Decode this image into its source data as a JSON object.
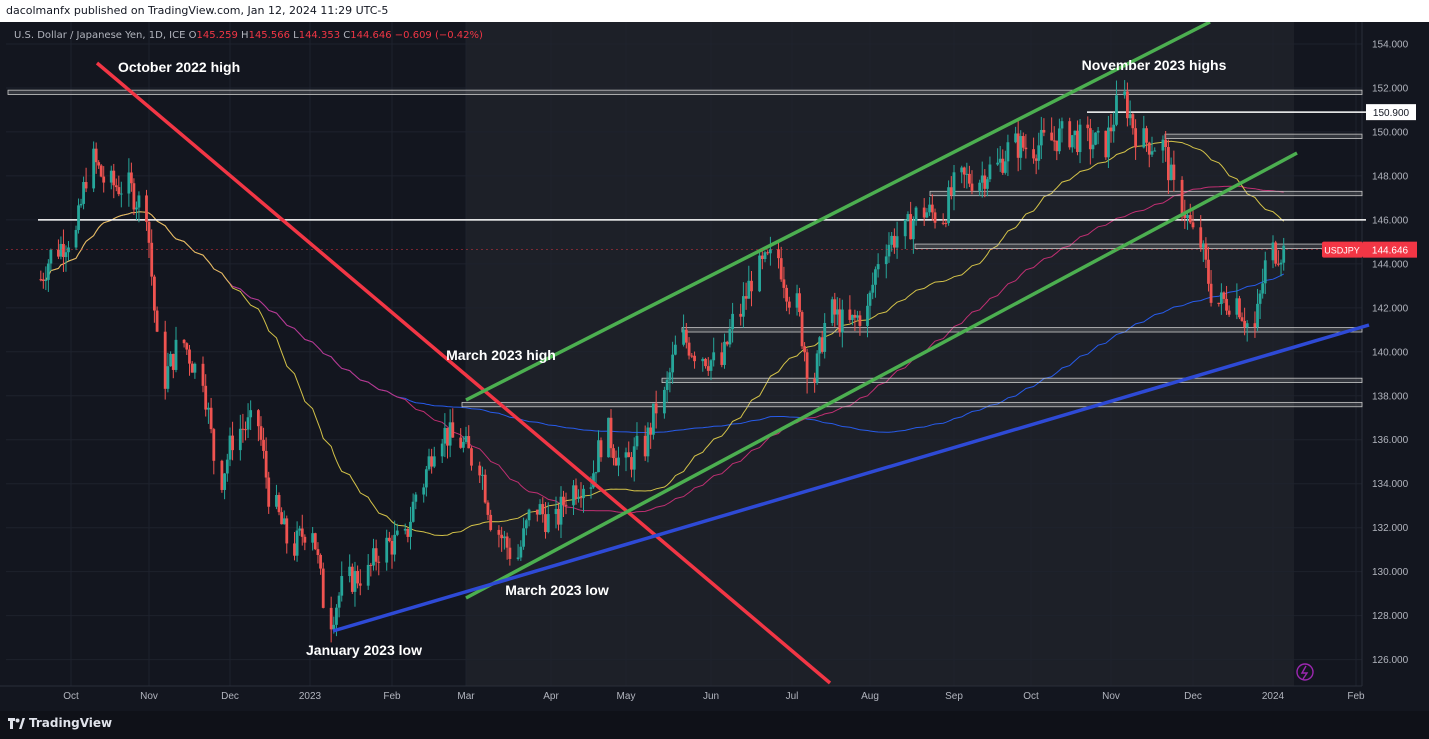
{
  "header": {
    "publisher_line": "dacolmanfx published on TradingView.com, Jan 12, 2024 11:29 UTC-5"
  },
  "legend": {
    "symbol_line": "U.S. Dollar / Japanese Yen, 1D, ICE",
    "open_label": "O",
    "open": "145.259",
    "high_label": "H",
    "high": "145.566",
    "low_label": "L",
    "low": "144.353",
    "close_label": "C",
    "close": "144.646",
    "change": "−0.609 (−0.42%)"
  },
  "footer": {
    "brand": "TradingView"
  },
  "colors": {
    "background": "#13161f",
    "grid": "#1e222d",
    "up": "#26a69a",
    "down": "#ef5350",
    "ma50": "#e8d44d",
    "ma100": "#d1317a",
    "ma200": "#2962ff",
    "channel": "#4caf50",
    "downtrend": "#f23645",
    "uptrend": "#2e4ad6",
    "level": "#ffffff",
    "price_tag": "#f23645"
  },
  "chart_data": {
    "type": "candlestick",
    "symbol": "USDJPY",
    "timeframe": "1D",
    "x_ticks": [
      "Oct",
      "Nov",
      "Dec",
      "2023",
      "Feb",
      "Mar",
      "Apr",
      "May",
      "Jun",
      "Jul",
      "Aug",
      "Sep",
      "Oct",
      "Nov",
      "Dec",
      "2024",
      "Feb"
    ],
    "y_ticks": [
      "154.000",
      "152.000",
      "150.000",
      "148.000",
      "146.000",
      "144.000",
      "142.000",
      "140.000",
      "138.000",
      "136.000",
      "134.000",
      "132.000",
      "130.000",
      "128.000",
      "126.000"
    ],
    "ylim": [
      124.8,
      155.0
    ],
    "current_price_label": "USDJPY",
    "current_price": "144.646",
    "marked_level_label": "150.900",
    "annotations": [
      {
        "text": "October 2022 high"
      },
      {
        "text": "November 2023 highs"
      },
      {
        "text": "March 2023 high"
      },
      {
        "text": "March 2023 low"
      },
      {
        "text": "January 2023 low"
      }
    ],
    "closes_weekly": [
      {
        "date": "2022-09-19",
        "c": 143.3
      },
      {
        "date": "2022-09-26",
        "c": 144.7
      },
      {
        "date": "2022-10-03",
        "c": 145.3
      },
      {
        "date": "2022-10-10",
        "c": 148.7
      },
      {
        "date": "2022-10-17",
        "c": 147.6
      },
      {
        "date": "2022-10-24",
        "c": 147.5
      },
      {
        "date": "2022-10-31",
        "c": 146.6
      },
      {
        "date": "2022-11-07",
        "c": 138.8
      },
      {
        "date": "2022-11-14",
        "c": 140.4
      },
      {
        "date": "2022-11-21",
        "c": 139.0
      },
      {
        "date": "2022-11-28",
        "c": 134.3
      },
      {
        "date": "2022-12-05",
        "c": 136.5
      },
      {
        "date": "2022-12-12",
        "c": 136.7
      },
      {
        "date": "2022-12-19",
        "c": 132.8
      },
      {
        "date": "2022-12-26",
        "c": 131.1
      },
      {
        "date": "2023-01-02",
        "c": 132.1
      },
      {
        "date": "2023-01-09",
        "c": 127.9
      },
      {
        "date": "2023-01-16",
        "c": 129.6
      },
      {
        "date": "2023-01-23",
        "c": 129.9
      },
      {
        "date": "2023-01-30",
        "c": 131.2
      },
      {
        "date": "2023-02-06",
        "c": 131.4
      },
      {
        "date": "2023-02-13",
        "c": 134.1
      },
      {
        "date": "2023-02-20",
        "c": 136.4
      },
      {
        "date": "2023-02-27",
        "c": 135.9
      },
      {
        "date": "2023-03-06",
        "c": 135.0
      },
      {
        "date": "2023-03-13",
        "c": 131.8
      },
      {
        "date": "2023-03-20",
        "c": 130.7
      },
      {
        "date": "2023-03-27",
        "c": 132.9
      },
      {
        "date": "2023-04-03",
        "c": 132.2
      },
      {
        "date": "2023-04-10",
        "c": 133.8
      },
      {
        "date": "2023-04-17",
        "c": 134.2
      },
      {
        "date": "2023-04-24",
        "c": 136.3
      },
      {
        "date": "2023-05-01",
        "c": 134.8
      },
      {
        "date": "2023-05-08",
        "c": 135.7
      },
      {
        "date": "2023-05-15",
        "c": 137.9
      },
      {
        "date": "2023-05-22",
        "c": 140.6
      },
      {
        "date": "2023-05-29",
        "c": 139.9
      },
      {
        "date": "2023-06-05",
        "c": 139.4
      },
      {
        "date": "2023-06-12",
        "c": 141.8
      },
      {
        "date": "2023-06-19",
        "c": 143.7
      },
      {
        "date": "2023-06-26",
        "c": 144.3
      },
      {
        "date": "2023-07-03",
        "c": 142.1
      },
      {
        "date": "2023-07-10",
        "c": 138.8
      },
      {
        "date": "2023-07-17",
        "c": 141.8
      },
      {
        "date": "2023-07-24",
        "c": 141.2
      },
      {
        "date": "2023-07-31",
        "c": 141.8
      },
      {
        "date": "2023-08-07",
        "c": 144.9
      },
      {
        "date": "2023-08-14",
        "c": 145.4
      },
      {
        "date": "2023-08-21",
        "c": 146.4
      },
      {
        "date": "2023-08-28",
        "c": 146.2
      },
      {
        "date": "2023-09-04",
        "c": 147.8
      },
      {
        "date": "2023-09-11",
        "c": 147.9
      },
      {
        "date": "2023-09-18",
        "c": 148.4
      },
      {
        "date": "2023-09-25",
        "c": 149.4
      },
      {
        "date": "2023-10-02",
        "c": 149.3
      },
      {
        "date": "2023-10-09",
        "c": 149.6
      },
      {
        "date": "2023-10-16",
        "c": 149.9
      },
      {
        "date": "2023-10-23",
        "c": 149.6
      },
      {
        "date": "2023-10-30",
        "c": 149.4
      },
      {
        "date": "2023-11-06",
        "c": 151.5
      },
      {
        "date": "2023-11-13",
        "c": 149.6
      },
      {
        "date": "2023-11-20",
        "c": 149.4
      },
      {
        "date": "2023-11-27",
        "c": 146.8
      },
      {
        "date": "2023-12-04",
        "c": 144.9
      },
      {
        "date": "2023-12-11",
        "c": 142.2
      },
      {
        "date": "2023-12-18",
        "c": 142.4
      },
      {
        "date": "2023-12-25",
        "c": 141.0
      },
      {
        "date": "2024-01-01",
        "c": 144.6
      },
      {
        "date": "2024-01-08",
        "c": 144.6
      }
    ]
  }
}
